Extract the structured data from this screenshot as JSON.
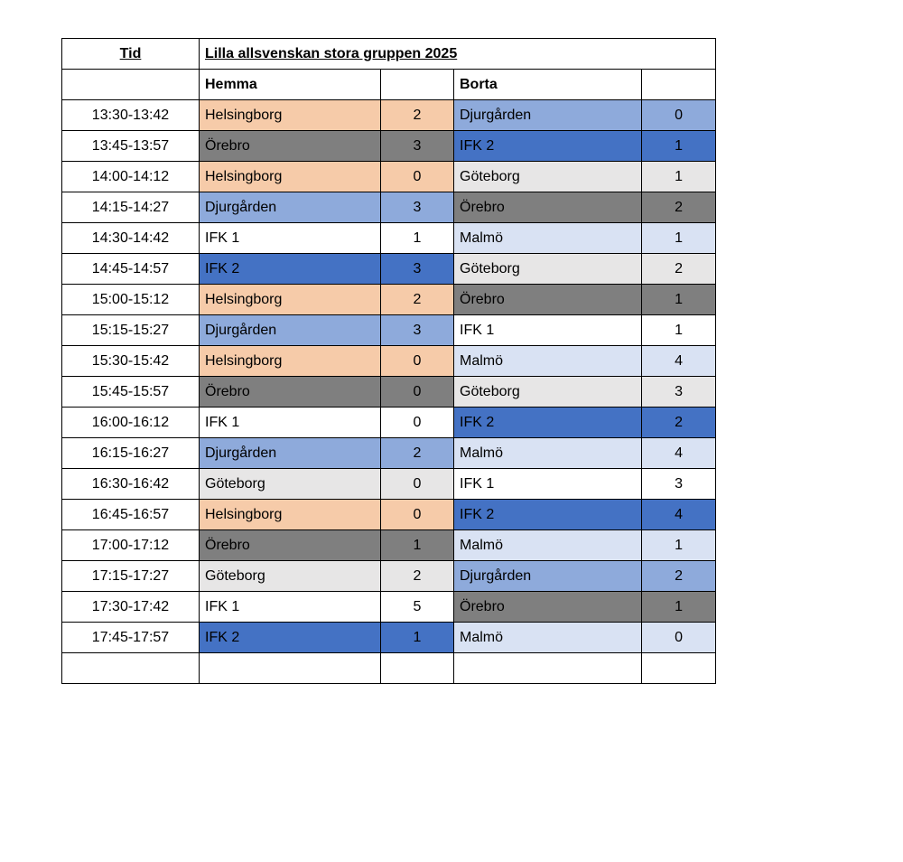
{
  "header": {
    "tid_label": "Tid",
    "title": "Lilla allsvenskan stora gruppen 2025",
    "home_label": "Hemma",
    "away_label": "Borta"
  },
  "team_colors": {
    "Helsingborg": "#F6CBA9",
    "Örebro": "#7F7F7F",
    "Djurgården": "#8EAADB",
    "IFK 1": "#FFFFFF",
    "IFK 2": "#4472C4",
    "Göteborg": "#E7E6E6",
    "Malmö": "#D9E2F3"
  },
  "schedule": {
    "rows": [
      {
        "time": "13:30-13:42",
        "home": "Helsingborg",
        "home_score": "2",
        "away": "Djurgården",
        "away_score": "0"
      },
      {
        "time": "13:45-13:57",
        "home": "Örebro",
        "home_score": "3",
        "away": "IFK 2",
        "away_score": "1"
      },
      {
        "time": "14:00-14:12",
        "home": "Helsingborg",
        "home_score": "0",
        "away": "Göteborg",
        "away_score": "1"
      },
      {
        "time": "14:15-14:27",
        "home": "Djurgården",
        "home_score": "3",
        "away": "Örebro",
        "away_score": "2"
      },
      {
        "time": "14:30-14:42",
        "home": "IFK 1",
        "home_score": "1",
        "away": "Malmö",
        "away_score": "1"
      },
      {
        "time": "14:45-14:57",
        "home": "IFK 2",
        "home_score": "3",
        "away": "Göteborg",
        "away_score": "2"
      },
      {
        "time": "15:00-15:12",
        "home": "Helsingborg",
        "home_score": "2",
        "away": "Örebro",
        "away_score": "1"
      },
      {
        "time": "15:15-15:27",
        "home": "Djurgården",
        "home_score": "3",
        "away": "IFK 1",
        "away_score": "1"
      },
      {
        "time": "15:30-15:42",
        "home": "Helsingborg",
        "home_score": "0",
        "away": "Malmö",
        "away_score": "4"
      },
      {
        "time": "15:45-15:57",
        "home": "Örebro",
        "home_score": "0",
        "away": "Göteborg",
        "away_score": "3"
      },
      {
        "time": "16:00-16:12",
        "home": "IFK 1",
        "home_score": "0",
        "away": "IFK 2",
        "away_score": "2"
      },
      {
        "time": "16:15-16:27",
        "home": "Djurgården",
        "home_score": "2",
        "away": "Malmö",
        "away_score": "4"
      },
      {
        "time": "16:30-16:42",
        "home": "Göteborg",
        "home_score": "0",
        "away": "IFK 1",
        "away_score": "3"
      },
      {
        "time": "16:45-16:57",
        "home": "Helsingborg",
        "home_score": "0",
        "away": "IFK 2",
        "away_score": "4"
      },
      {
        "time": "17:00-17:12",
        "home": "Örebro",
        "home_score": "1",
        "away": "Malmö",
        "away_score": "1"
      },
      {
        "time": "17:15-17:27",
        "home": "Göteborg",
        "home_score": "2",
        "away": "Djurgården",
        "away_score": "2"
      },
      {
        "time": "17:30-17:42",
        "home": "IFK 1",
        "home_score": "5",
        "away": "Örebro",
        "away_score": "1"
      },
      {
        "time": "17:45-17:57",
        "home": "IFK 2",
        "home_score": "1",
        "away": "Malmö",
        "away_score": "0"
      },
      {
        "time": "",
        "home": "",
        "home_score": "",
        "away": "",
        "away_score": ""
      }
    ]
  }
}
